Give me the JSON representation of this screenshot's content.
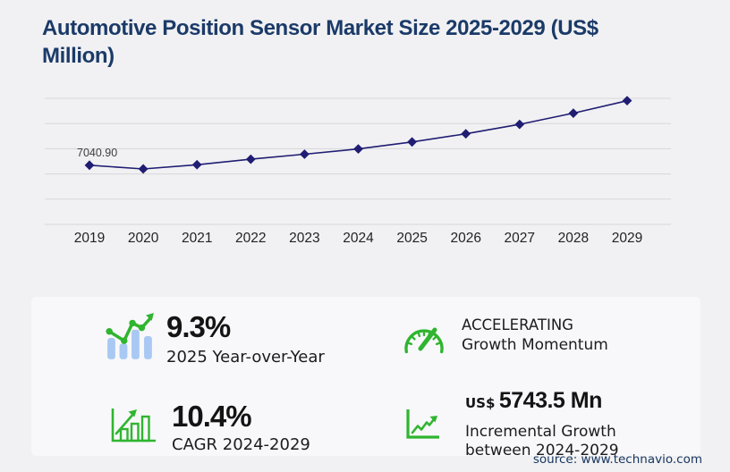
{
  "title": {
    "line1": "Automotive Position Sensor Market Size 2025-2029 (US$",
    "line2": "Million)"
  },
  "chart_data": {
    "type": "line",
    "title": "Automotive Position Sensor Market Size 2025-2029 (US$ Million)",
    "x": [
      "2019",
      "2020",
      "2021",
      "2022",
      "2023",
      "2024",
      "2025",
      "2026",
      "2027",
      "2028",
      "2029"
    ],
    "series": [
      {
        "name": "Market size (US$ million)",
        "values": [
          7040.9,
          6600,
          7100,
          7750,
          8350,
          8974.2,
          9808.9,
          10780,
          11900,
          13230,
          14717.7
        ]
      }
    ],
    "labeled_points": [
      {
        "x": "2019",
        "label": "7040.90"
      }
    ],
    "ylim": [
      0,
      15000
    ],
    "gridline_count": 6,
    "grid": "horizontal",
    "legend": "none",
    "marker": "diamond",
    "xlabel": "",
    "ylabel": ""
  },
  "stats": [
    {
      "icon": "bar-chart-trend-icon",
      "value": "9.3%",
      "label": "2025 Year-over-Year"
    },
    {
      "icon": "speedometer-icon",
      "line1": "ACCELERATING",
      "line2": "Growth Momentum"
    },
    {
      "icon": "growth-chart-arrow-icon",
      "value": "10.4%",
      "label": "CAGR 2024-2029"
    },
    {
      "icon": "line-graph-arrow-icon",
      "prefix": "US$",
      "value": "5743.5 Mn",
      "label_line1": "Incremental Growth",
      "label_line2": "between 2024-2029"
    }
  ],
  "source_text": "source: www.technavio.com",
  "colors": {
    "page_bg": "#f1f1f3",
    "panel_bg": "#f8f8fa",
    "title_navy": "#1b3a68",
    "line_navy": "#201d73",
    "accent_green": "#2fb52f",
    "icon_blue": "#a9c9f4",
    "grid_gray": "#d7d7da",
    "text_dark": "#1c1c1e",
    "source_navy": "#16355e",
    "tick_label": "#232323",
    "point_label": "#3d3d3d"
  }
}
